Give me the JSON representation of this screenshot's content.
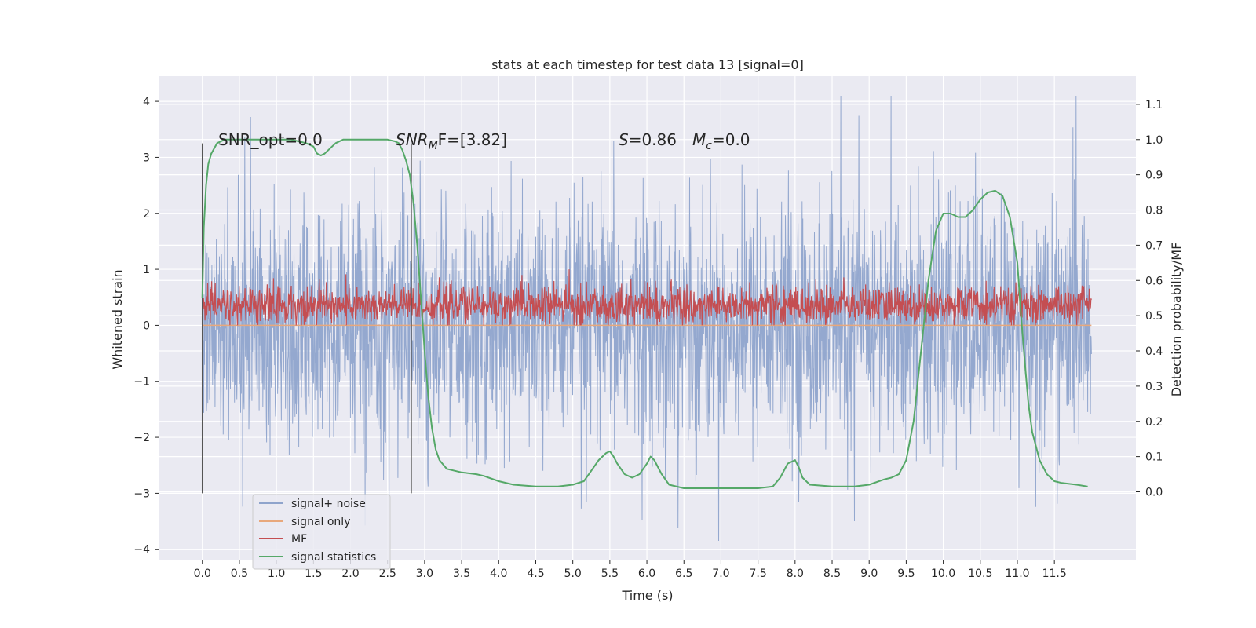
{
  "chart_data": {
    "type": "line",
    "title": "stats at each timestep for test data 13 [signal=0]",
    "xlabel": "Time (s)",
    "ylabel": "Whitened strain",
    "y2label": "Detection probability/MF",
    "xlim": [
      -0.58,
      12.6
    ],
    "ylim": [
      -4.2,
      4.45
    ],
    "y2lim": [
      -0.195,
      1.18
    ],
    "xticks": [
      0.0,
      0.5,
      1.0,
      1.5,
      2.0,
      2.5,
      3.0,
      3.5,
      4.0,
      4.5,
      5.0,
      5.5,
      6.0,
      6.5,
      7.0,
      7.5,
      8.0,
      8.5,
      9.0,
      9.5,
      10.0,
      10.5,
      11.0,
      11.5
    ],
    "xtick_labels": [
      "0.0",
      "0.5",
      "1.0",
      "1.5",
      "2.0",
      "2.5",
      "3.0",
      "3.5",
      "4.0",
      "4.5",
      "5.0",
      "5.5",
      "6.0",
      "6.5",
      "7.0",
      "7.5",
      "8.0",
      "8.5",
      "9.0",
      "9.5",
      "10.0",
      "10.5",
      "11.0",
      "11.5"
    ],
    "yticks": [
      -4,
      -3,
      -2,
      -1,
      0,
      1,
      2,
      3,
      4
    ],
    "ytick_labels": [
      "−4",
      "−3",
      "−2",
      "−1",
      "0",
      "1",
      "2",
      "3",
      "4"
    ],
    "y2ticks": [
      0.0,
      0.1,
      0.2,
      0.3,
      0.4,
      0.5,
      0.6,
      0.7,
      0.8,
      0.9,
      1.0,
      1.1
    ],
    "y2tick_labels": [
      "0.0",
      "0.1",
      "0.2",
      "0.3",
      "0.4",
      "0.5",
      "0.6",
      "0.7",
      "0.8",
      "0.9",
      "1.0",
      "1.1"
    ],
    "grid": true,
    "legend_position": "bottom-left",
    "series": [
      {
        "name": "signal+ noise",
        "color": "#8fa4cc",
        "axis": "left",
        "x_range": [
          0.0,
          12.0
        ],
        "typical_range": [
          -1.8,
          1.8
        ],
        "extreme_range": [
          -3.85,
          4.1
        ]
      },
      {
        "name": "signal only",
        "color": "#e8a87c",
        "axis": "left",
        "x": [
          0.0,
          12.0
        ],
        "y": [
          0.0,
          0.0
        ]
      },
      {
        "name": "MF",
        "color": "#c44e52",
        "axis": "left",
        "x_range": [
          0.0,
          12.0
        ],
        "typical_range": [
          0.05,
          0.7
        ],
        "extreme_range": [
          0.0,
          1.0
        ]
      },
      {
        "name": "signal statistics",
        "color": "#55a868",
        "axis": "right",
        "x": [
          0.0,
          0.02,
          0.05,
          0.08,
          0.12,
          0.2,
          0.3,
          0.5,
          0.8,
          1.0,
          1.2,
          1.4,
          1.5,
          1.55,
          1.6,
          1.65,
          1.7,
          1.8,
          1.9,
          2.0,
          2.2,
          2.4,
          2.5,
          2.6,
          2.65,
          2.7,
          2.75,
          2.8,
          2.85,
          2.9,
          2.95,
          3.0,
          3.05,
          3.1,
          3.15,
          3.2,
          3.3,
          3.5,
          3.7,
          3.8,
          4.0,
          4.2,
          4.5,
          4.8,
          5.0,
          5.15,
          5.25,
          5.35,
          5.45,
          5.5,
          5.55,
          5.6,
          5.7,
          5.8,
          5.9,
          6.0,
          6.05,
          6.1,
          6.2,
          6.3,
          6.5,
          7.0,
          7.5,
          7.7,
          7.8,
          7.9,
          8.0,
          8.05,
          8.1,
          8.2,
          8.5,
          8.8,
          9.0,
          9.2,
          9.3,
          9.4,
          9.5,
          9.6,
          9.7,
          9.8,
          9.9,
          10.0,
          10.1,
          10.2,
          10.3,
          10.4,
          10.5,
          10.6,
          10.7,
          10.8,
          10.9,
          11.0,
          11.05,
          11.1,
          11.15,
          11.2,
          11.3,
          11.4,
          11.5,
          11.6,
          11.8,
          11.95
        ],
        "y": [
          0.55,
          0.75,
          0.87,
          0.93,
          0.96,
          0.99,
          1.0,
          1.0,
          1.0,
          1.0,
          1.0,
          0.99,
          0.98,
          0.96,
          0.955,
          0.96,
          0.97,
          0.99,
          1.0,
          1.0,
          1.0,
          1.0,
          1.0,
          0.995,
          0.99,
          0.97,
          0.94,
          0.9,
          0.82,
          0.7,
          0.55,
          0.4,
          0.27,
          0.18,
          0.12,
          0.09,
          0.065,
          0.055,
          0.05,
          0.045,
          0.03,
          0.02,
          0.015,
          0.015,
          0.02,
          0.03,
          0.06,
          0.09,
          0.11,
          0.115,
          0.1,
          0.08,
          0.05,
          0.04,
          0.05,
          0.08,
          0.1,
          0.09,
          0.05,
          0.02,
          0.01,
          0.01,
          0.01,
          0.015,
          0.04,
          0.08,
          0.09,
          0.07,
          0.04,
          0.02,
          0.015,
          0.015,
          0.02,
          0.035,
          0.04,
          0.05,
          0.09,
          0.2,
          0.4,
          0.6,
          0.74,
          0.79,
          0.79,
          0.78,
          0.78,
          0.8,
          0.83,
          0.85,
          0.855,
          0.84,
          0.78,
          0.65,
          0.5,
          0.37,
          0.25,
          0.17,
          0.09,
          0.05,
          0.03,
          0.025,
          0.02,
          0.015
        ]
      }
    ],
    "vlines": [
      {
        "x": 0.0,
        "y_range": [
          -3.0,
          3.25
        ],
        "color": "#555555"
      },
      {
        "x": 2.82,
        "y_range": [
          -3.0,
          3.25
        ],
        "color": "#555555"
      }
    ],
    "annotations": [
      {
        "text": "SNR_opt=0.0",
        "x": 0.22,
        "y": 3.2
      },
      {
        "text": "SNR_MF=[3.82]",
        "x": 2.62,
        "y": 3.2
      },
      {
        "text": "S=0.86",
        "x": 5.6,
        "y": 3.2
      },
      {
        "text": "M_c=0.0",
        "x": 6.6,
        "y": 3.2
      }
    ],
    "annotation_display": {
      "snr_opt": "SNR_opt=0.0",
      "snr_mf_sym": "SNR",
      "snr_mf_sub": "M",
      "snr_mf_rest": "F=[3.82]",
      "s_sym": "S",
      "s_rest": "=0.86",
      "mc_sym": "M",
      "mc_sub": "c",
      "mc_rest": "=0.0"
    }
  }
}
